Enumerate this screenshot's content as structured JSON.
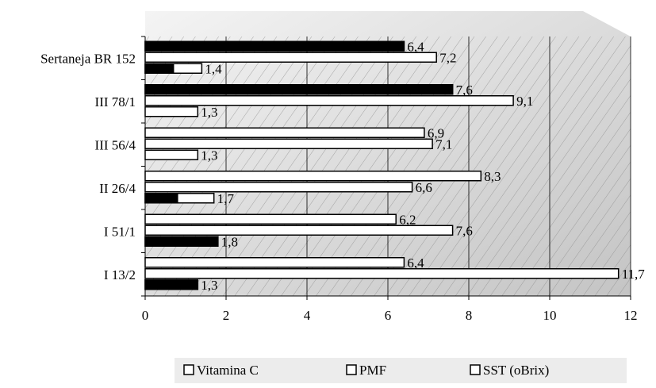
{
  "chart_data": {
    "type": "bar",
    "orientation": "horizontal",
    "categories": [
      "Sertaneja BR 152",
      "III 78/1",
      "III 56/4",
      "II 26/4",
      "I 51/1",
      "I 13/2"
    ],
    "series": [
      {
        "name": "Vitamina C",
        "values": [
          6.4,
          7.6,
          6.9,
          8.3,
          6.2,
          6.4
        ],
        "labels": [
          "6,4",
          "7,6",
          "6,9",
          "8,3",
          "6,2",
          "6,4"
        ]
      },
      {
        "name": "PMF",
        "values": [
          7.2,
          9.1,
          7.1,
          6.6,
          7.6,
          11.7
        ],
        "labels": [
          "7,2",
          "9,1",
          "7,1",
          "6,6",
          "7,6",
          "11,7"
        ]
      },
      {
        "name": "SST (oBrix)",
        "values": [
          1.4,
          1.3,
          1.3,
          1.7,
          1.8,
          1.3
        ],
        "labels": [
          "1,4",
          "1,3",
          "1,3",
          "1,7",
          "1,8",
          "1,3"
        ]
      }
    ],
    "black_segments": [
      {
        "series": "Vitamina C",
        "values": [
          6.4,
          7.6,
          null,
          null,
          null,
          null
        ]
      },
      {
        "series": "SST (oBrix)",
        "values": [
          0.7,
          null,
          null,
          0.8,
          1.8,
          1.3
        ]
      }
    ],
    "xlim": [
      0,
      12
    ],
    "xticks": [
      "0",
      "2",
      "4",
      "6",
      "8",
      "10",
      "12"
    ],
    "grid": "vertical",
    "legend": "bottom",
    "colors": {
      "bar_fill": "#ffffff",
      "bar_stroke": "#000000",
      "dark_fill": "#000000",
      "plot_bg": "#d8d8d8"
    }
  }
}
